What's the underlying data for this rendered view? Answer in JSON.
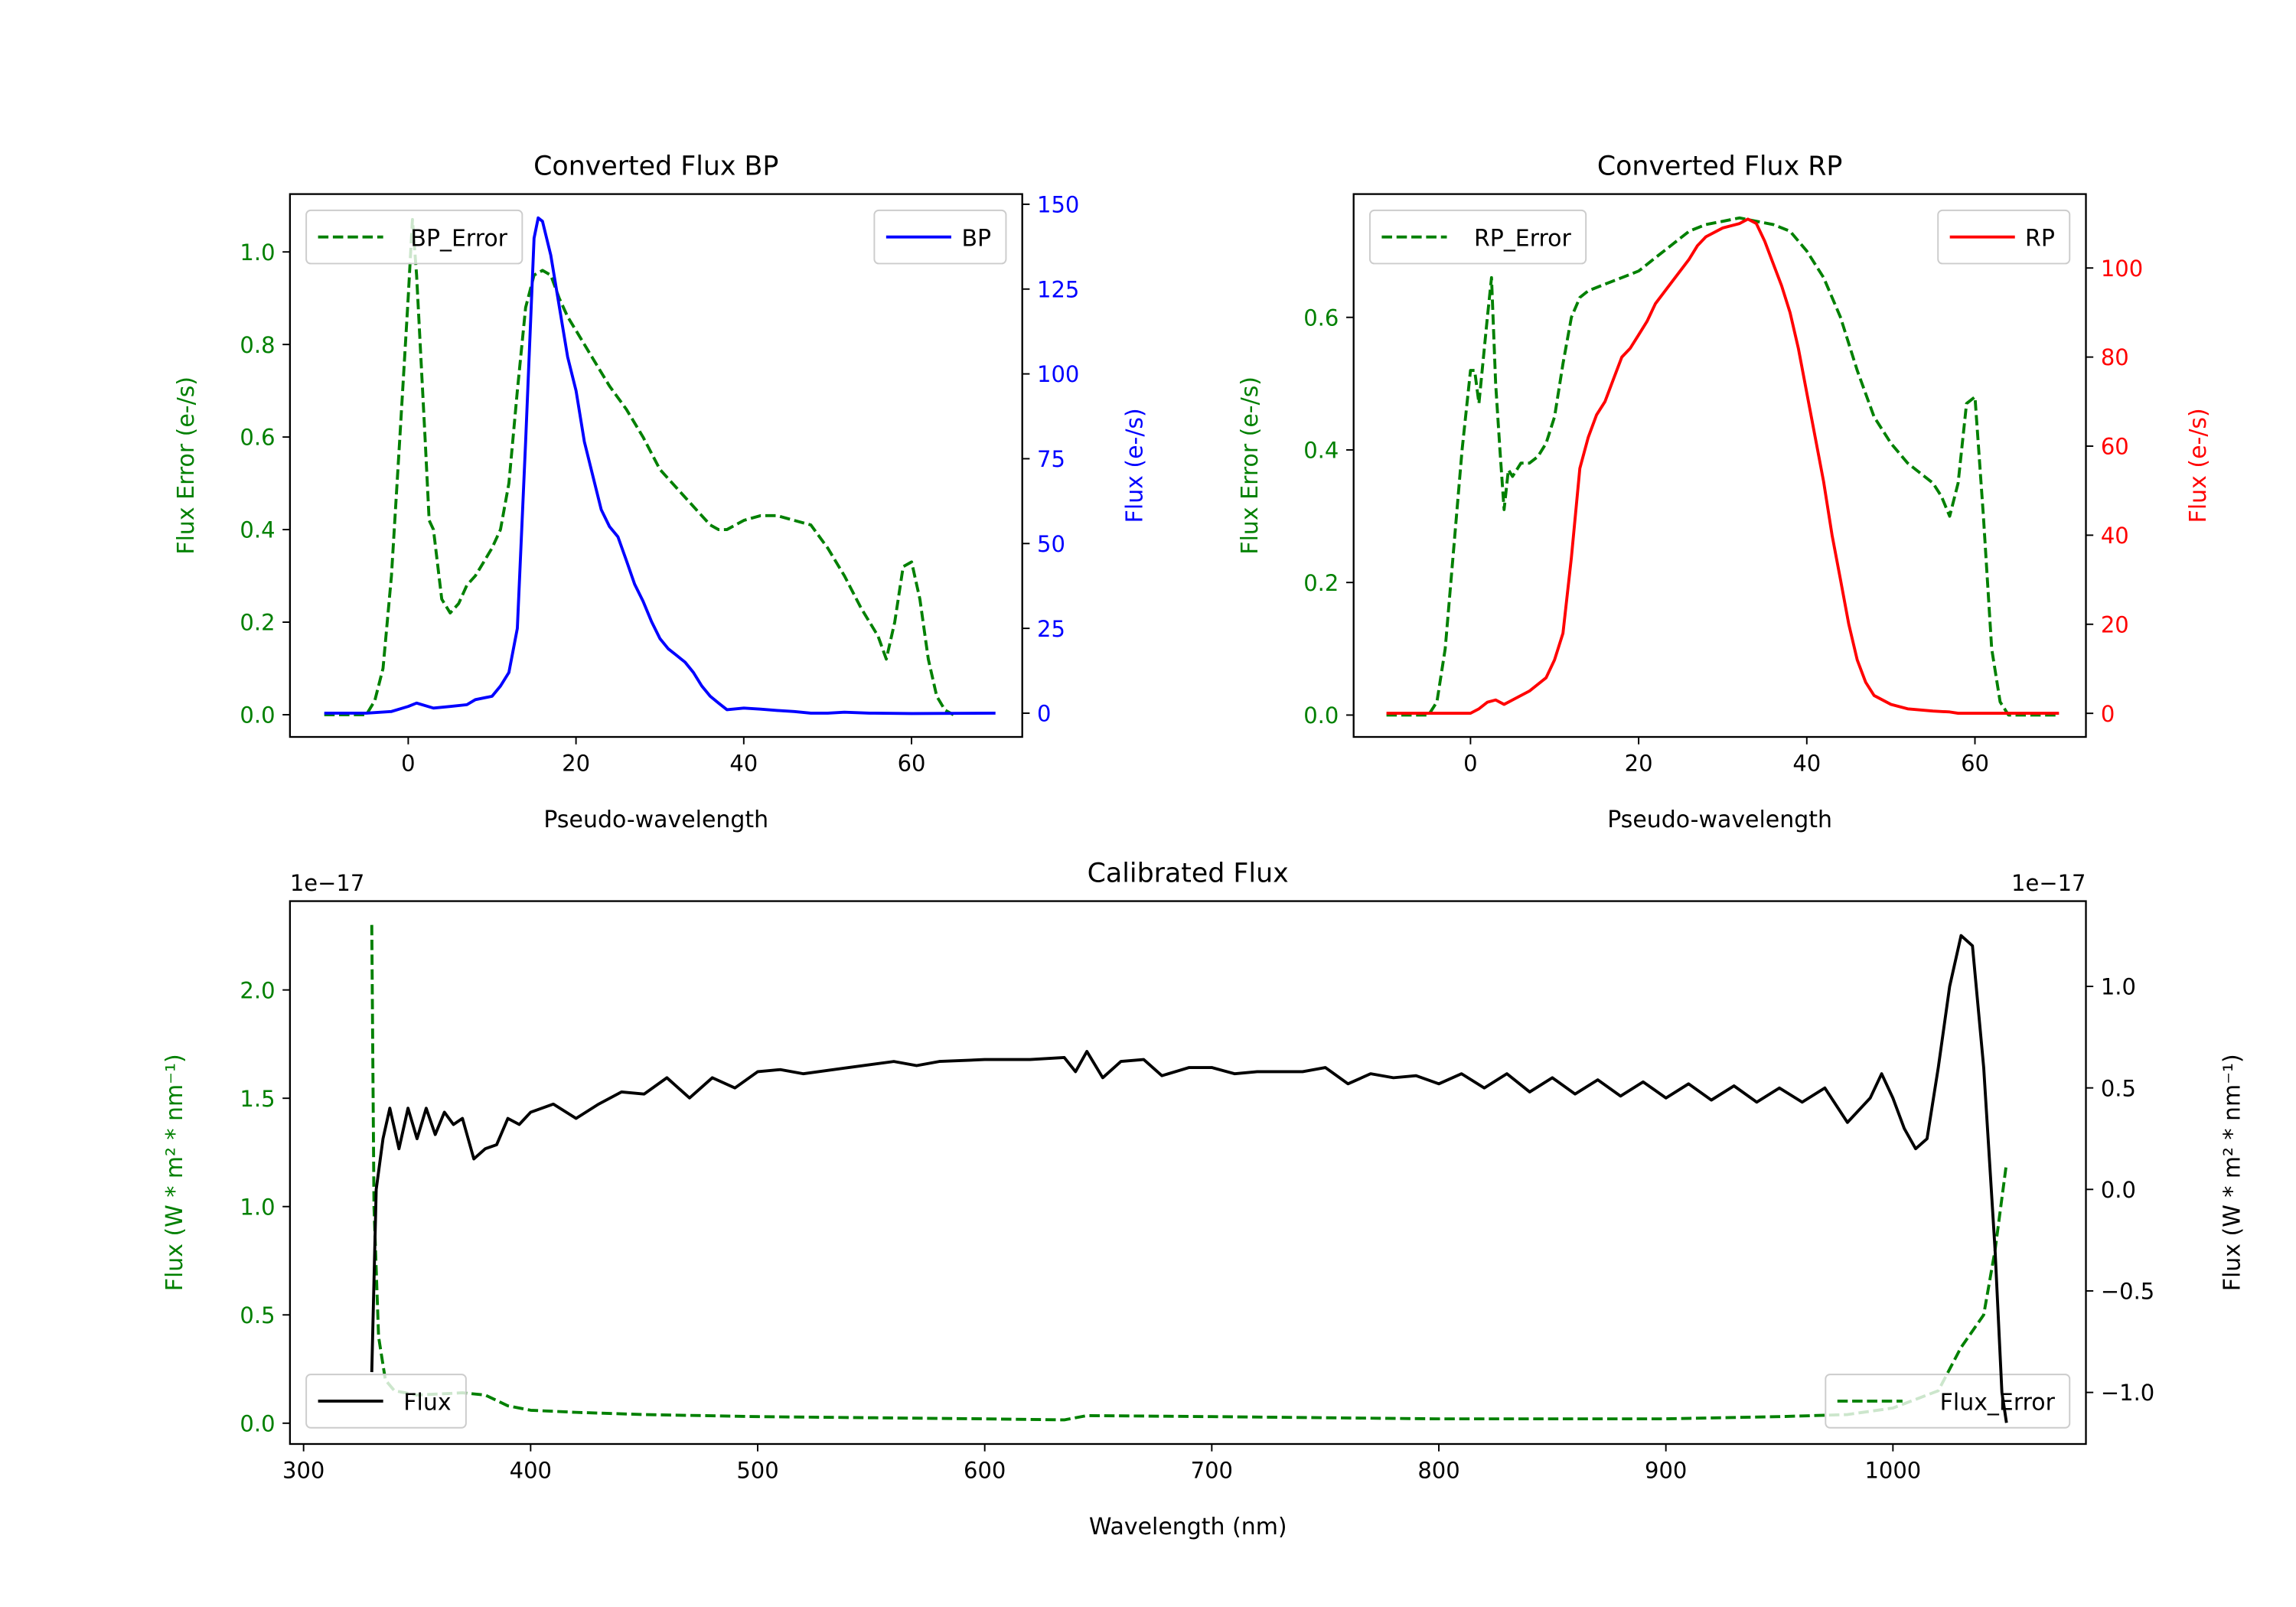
{
  "chart_data": [
    {
      "type": "line",
      "title": "Converted Flux BP",
      "xlabel": "Pseudo-wavelength",
      "ylabel_left": "Flux Error (e-/s)",
      "ylabel_right": "Flux (e-/s)",
      "xlim": [
        -14.1,
        73.2
      ],
      "ylim_left": [
        -0.048,
        1.125
      ],
      "ylim_right": [
        -7,
        153
      ],
      "xticks": [
        0,
        20,
        40,
        60
      ],
      "yticks_left": [
        "0.0",
        "0.2",
        "0.4",
        "0.6",
        "0.8",
        "1.0"
      ],
      "yticks_right": [
        "0",
        "25",
        "50",
        "75",
        "100",
        "125",
        "150"
      ],
      "colors": {
        "left": "#008000",
        "right": "#0000ff"
      },
      "series": [
        {
          "name": "BP_Error",
          "axis": "left",
          "style": "dashed",
          "color": "#008000",
          "legend": "upper left",
          "x": [
            -10,
            -5,
            -4,
            -3,
            -2,
            -1,
            0,
            0.5,
            1,
            2,
            2.5,
            3,
            4,
            5,
            6,
            7,
            8,
            9,
            10,
            11,
            12,
            13,
            14,
            15,
            16,
            17,
            18,
            19,
            20,
            22,
            24,
            26,
            28,
            30,
            32,
            34,
            36,
            37,
            38,
            40,
            42,
            44,
            46,
            48,
            50,
            52,
            54,
            56,
            57,
            58,
            59,
            60,
            61,
            62,
            63,
            64,
            65
          ],
          "y": [
            0,
            0,
            0.03,
            0.1,
            0.3,
            0.6,
            0.9,
            1.07,
            0.95,
            0.6,
            0.42,
            0.4,
            0.25,
            0.22,
            0.24,
            0.28,
            0.3,
            0.33,
            0.36,
            0.4,
            0.5,
            0.7,
            0.88,
            0.95,
            0.96,
            0.95,
            0.9,
            0.86,
            0.83,
            0.77,
            0.71,
            0.66,
            0.6,
            0.53,
            0.49,
            0.45,
            0.41,
            0.4,
            0.4,
            0.42,
            0.43,
            0.43,
            0.42,
            0.41,
            0.36,
            0.3,
            0.23,
            0.17,
            0.12,
            0.2,
            0.32,
            0.33,
            0.25,
            0.12,
            0.04,
            0.01,
            0
          ]
        },
        {
          "name": "BP",
          "axis": "right",
          "style": "solid",
          "color": "#0000ff",
          "legend": "upper right",
          "x": [
            -10,
            -5,
            -2,
            0,
            1,
            3,
            5,
            7,
            8,
            10,
            11,
            12,
            13,
            14,
            15,
            15.5,
            16,
            17,
            18,
            19,
            20,
            21,
            22,
            23,
            24,
            25,
            26,
            27,
            28,
            29,
            30,
            31,
            32,
            33,
            34,
            35,
            36,
            37,
            38,
            40,
            42,
            44,
            46,
            48,
            50,
            52,
            55,
            60,
            70
          ],
          "y": [
            0,
            0,
            0.5,
            2,
            3,
            1.5,
            2,
            2.5,
            4,
            5,
            8,
            12,
            25,
            80,
            140,
            146,
            145,
            135,
            120,
            105,
            95,
            80,
            70,
            60,
            55,
            52,
            45,
            38,
            33,
            27,
            22,
            19,
            17,
            15,
            12,
            8,
            5,
            3,
            1,
            1.5,
            1.2,
            0.8,
            0.5,
            0,
            0,
            0.3,
            0,
            -0.1,
            0
          ]
        }
      ]
    },
    {
      "type": "line",
      "title": "Converted Flux RP",
      "xlabel": "Pseudo-wavelength",
      "ylabel_left": "Flux Error (e-/s)",
      "ylabel_right": "Flux (e-/s)",
      "xlim": [
        -13.9,
        73.2
      ],
      "ylim_left": [
        -0.033,
        0.786
      ],
      "ylim_right": [
        -5.3,
        116.6
      ],
      "xticks": [
        0,
        20,
        40,
        60
      ],
      "yticks_left": [
        "0.0",
        "0.2",
        "0.4",
        "0.6"
      ],
      "yticks_right": [
        "0",
        "20",
        "40",
        "60",
        "80",
        "100"
      ],
      "colors": {
        "left": "#008000",
        "right": "#ff0000"
      },
      "series": [
        {
          "name": "RP_Error",
          "axis": "left",
          "style": "dashed",
          "color": "#008000",
          "legend": "upper left",
          "x": [
            -10,
            -5,
            -4,
            -3,
            -2,
            -1,
            0,
            0.5,
            1,
            2,
            2.5,
            3,
            3.5,
            4,
            4.5,
            5,
            6,
            7,
            8,
            9,
            10,
            11,
            12,
            13,
            14,
            16,
            18,
            20,
            22,
            24,
            26,
            28,
            30,
            32,
            34,
            36,
            38,
            40,
            42,
            44,
            46,
            48,
            50,
            52,
            54,
            55,
            56,
            57,
            58,
            59,
            60,
            61,
            62,
            63,
            64,
            70
          ],
          "y": [
            0,
            0,
            0.02,
            0.1,
            0.25,
            0.4,
            0.52,
            0.52,
            0.47,
            0.6,
            0.66,
            0.5,
            0.4,
            0.31,
            0.37,
            0.36,
            0.38,
            0.38,
            0.39,
            0.41,
            0.45,
            0.53,
            0.6,
            0.63,
            0.64,
            0.65,
            0.66,
            0.67,
            0.69,
            0.71,
            0.73,
            0.74,
            0.745,
            0.75,
            0.745,
            0.74,
            0.73,
            0.7,
            0.66,
            0.6,
            0.52,
            0.45,
            0.41,
            0.38,
            0.36,
            0.35,
            0.33,
            0.3,
            0.35,
            0.47,
            0.48,
            0.3,
            0.1,
            0.02,
            0,
            0
          ]
        },
        {
          "name": "RP",
          "axis": "right",
          "style": "solid",
          "color": "#ff0000",
          "legend": "upper right",
          "x": [
            -10,
            -5,
            0,
            1,
            2,
            3,
            4,
            5,
            7,
            9,
            10,
            11,
            12,
            13,
            14,
            15,
            16,
            17,
            18,
            19,
            20,
            21,
            22,
            24,
            26,
            27,
            28,
            30,
            32,
            33,
            34,
            35,
            36,
            37,
            38,
            39,
            40,
            41,
            42,
            43,
            44,
            45,
            46,
            47,
            48,
            50,
            52,
            55,
            57,
            58,
            60,
            70
          ],
          "y": [
            0,
            0,
            0,
            1,
            2.5,
            3,
            2,
            3,
            5,
            8,
            12,
            18,
            35,
            55,
            62,
            67,
            70,
            75,
            80,
            82,
            85,
            88,
            92,
            97,
            102,
            105,
            107,
            109,
            110,
            111,
            110,
            106,
            101,
            96,
            90,
            82,
            72,
            62,
            52,
            40,
            30,
            20,
            12,
            7,
            4,
            2,
            1,
            0.5,
            0.3,
            0,
            0,
            0
          ]
        }
      ]
    },
    {
      "type": "line",
      "title": "Calibrated Flux",
      "xlabel": "Wavelength (nm)",
      "ylabel_left": "Flux (W * m² * nm⁻¹)",
      "ylabel_right": "Flux (W * m² * nm⁻¹)",
      "offset_left": "1e−17",
      "offset_right": "1e−17",
      "xlim": [
        294,
        1085
      ],
      "ylim_left": [
        -0.096,
        2.41
      ],
      "ylim_right": [
        -1.254,
        1.42
      ],
      "xticks": [
        300,
        400,
        500,
        600,
        700,
        800,
        900,
        1000
      ],
      "yticks_left": [
        "0.0",
        "0.5",
        "1.0",
        "1.5",
        "2.0"
      ],
      "yticks_right": [
        "−1.0",
        "−0.5",
        "0.0",
        "0.5",
        "1.0"
      ],
      "colors": {
        "left": "#008000",
        "right": "#000000"
      },
      "series": [
        {
          "name": "Flux_Error",
          "axis": "left",
          "style": "dashed",
          "color": "#008000",
          "legend": "lower right",
          "x": [
            330,
            331,
            333,
            336,
            340,
            350,
            370,
            380,
            390,
            400,
            420,
            450,
            500,
            600,
            635,
            645,
            700,
            800,
            900,
            950,
            980,
            1000,
            1020,
            1030,
            1040,
            1045,
            1050
          ],
          "y": [
            2.3,
            1.0,
            0.4,
            0.2,
            0.15,
            0.13,
            0.14,
            0.13,
            0.08,
            0.06,
            0.05,
            0.04,
            0.03,
            0.02,
            0.015,
            0.035,
            0.03,
            0.02,
            0.02,
            0.03,
            0.04,
            0.07,
            0.15,
            0.35,
            0.5,
            0.8,
            1.2
          ]
        },
        {
          "name": "Flux",
          "axis": "right",
          "style": "solid",
          "color": "#000000",
          "legend": "lower left",
          "x": [
            330,
            332,
            335,
            338,
            342,
            346,
            350,
            354,
            358,
            362,
            366,
            370,
            375,
            380,
            385,
            390,
            395,
            400,
            410,
            420,
            430,
            440,
            450,
            460,
            470,
            480,
            490,
            500,
            510,
            520,
            540,
            560,
            570,
            580,
            600,
            620,
            635,
            640,
            645,
            652,
            660,
            670,
            678,
            690,
            700,
            710,
            720,
            740,
            750,
            760,
            770,
            780,
            790,
            800,
            810,
            820,
            830,
            840,
            850,
            860,
            870,
            880,
            890,
            900,
            910,
            920,
            930,
            940,
            950,
            960,
            970,
            980,
            990,
            995,
            1000,
            1005,
            1010,
            1015,
            1020,
            1025,
            1030,
            1035,
            1040,
            1045,
            1048,
            1050
          ],
          "y": [
            -0.9,
            0,
            0.25,
            0.4,
            0.2,
            0.4,
            0.25,
            0.4,
            0.27,
            0.38,
            0.32,
            0.35,
            0.15,
            0.2,
            0.22,
            0.35,
            0.32,
            0.38,
            0.42,
            0.35,
            0.42,
            0.48,
            0.47,
            0.55,
            0.45,
            0.55,
            0.5,
            0.58,
            0.59,
            0.57,
            0.6,
            0.63,
            0.61,
            0.63,
            0.64,
            0.64,
            0.65,
            0.58,
            0.68,
            0.55,
            0.63,
            0.64,
            0.56,
            0.6,
            0.6,
            0.57,
            0.58,
            0.58,
            0.6,
            0.52,
            0.57,
            0.55,
            0.56,
            0.52,
            0.57,
            0.5,
            0.57,
            0.48,
            0.55,
            0.47,
            0.54,
            0.46,
            0.53,
            0.45,
            0.52,
            0.44,
            0.51,
            0.43,
            0.5,
            0.43,
            0.5,
            0.33,
            0.45,
            0.57,
            0.45,
            0.3,
            0.2,
            0.25,
            0.6,
            1.0,
            1.25,
            1.2,
            0.6,
            -0.3,
            -1.0,
            -1.15
          ]
        }
      ]
    }
  ]
}
